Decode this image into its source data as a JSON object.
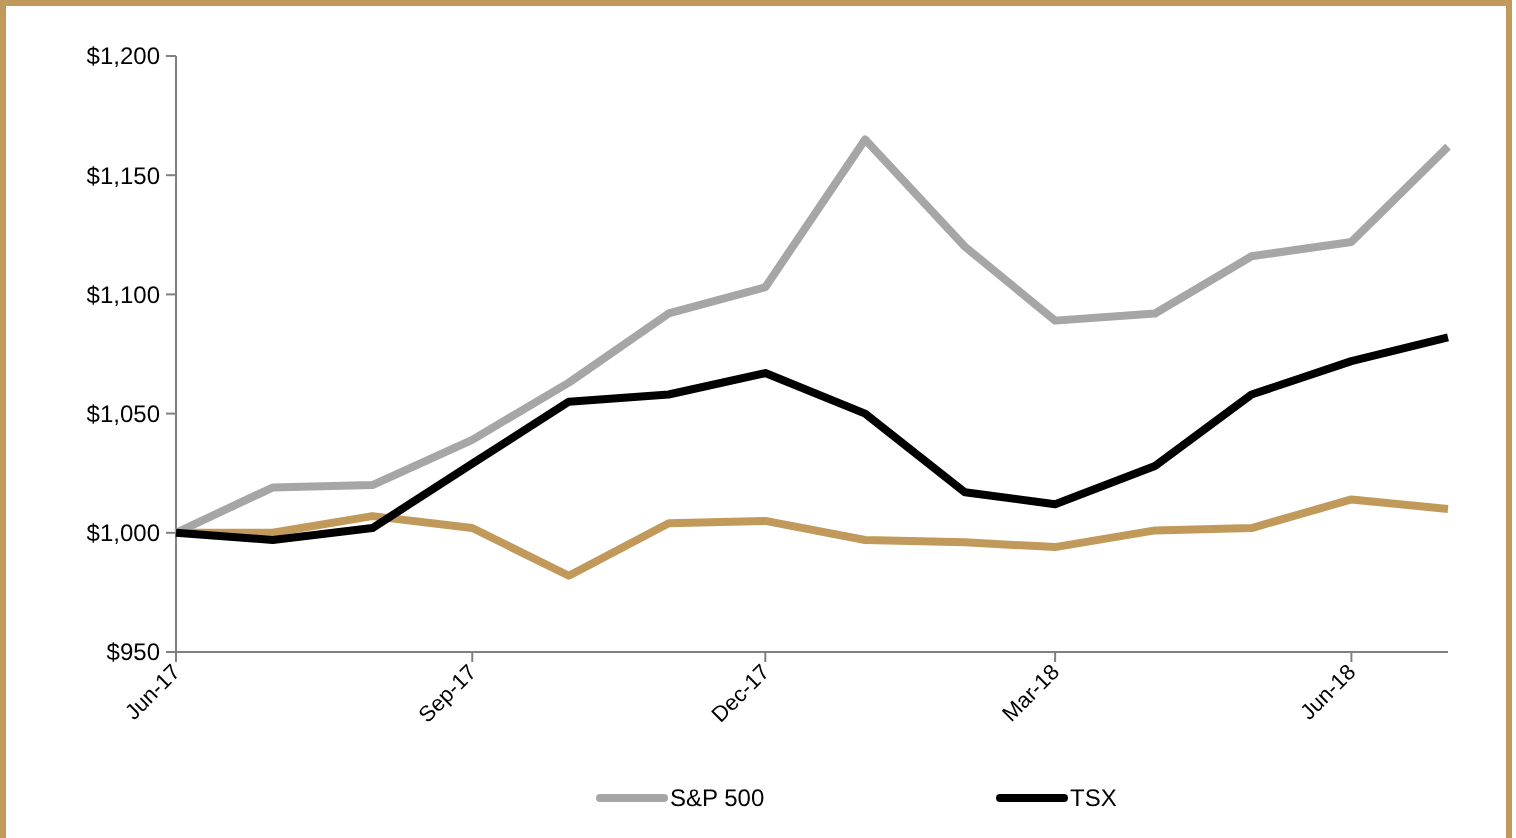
{
  "chart_data": {
    "type": "line",
    "x": [
      "2017-06",
      "2017-07",
      "2017-08",
      "2017-09",
      "2017-10",
      "2017-11",
      "2017-12",
      "2018-01",
      "2018-02",
      "2018-03",
      "2018-04",
      "2018-05",
      "2018-06",
      "2018-07"
    ],
    "series": [
      {
        "color": "#c19a5b",
        "values": [
          1000,
          1000,
          1007,
          1002,
          982,
          1004,
          1005,
          997,
          996,
          994,
          1001,
          1002,
          1014,
          1010
        ]
      },
      {
        "name": "S&P 500",
        "color": "#a6a6a6",
        "values": [
          1000,
          1019,
          1020,
          1039,
          1063,
          1092,
          1103,
          1165,
          1120,
          1089,
          1092,
          1116,
          1122,
          1162
        ]
      },
      {
        "name": "TSX",
        "color": "#000000",
        "values": [
          1000,
          997,
          1002,
          1029,
          1055,
          1058,
          1067,
          1050,
          1017,
          1012,
          1028,
          1058,
          1072,
          1082
        ]
      }
    ],
    "xlim": [
      "2017-06",
      "2018-07"
    ],
    "xticks": [
      {
        "value": "2017-06",
        "label": "Jun-17"
      },
      {
        "value": "2017-09",
        "label": "Sep-17"
      },
      {
        "value": "2017-12",
        "label": "Dec-17"
      },
      {
        "value": "2018-03",
        "label": "Mar-18"
      },
      {
        "value": "2018-06",
        "label": "Jun-18"
      }
    ],
    "ylim": [
      950,
      1200
    ],
    "yticks": [
      {
        "value": 950,
        "label": "$950"
      },
      {
        "value": 1000,
        "label": "$1,000"
      },
      {
        "value": 1050,
        "label": "$1,050"
      },
      {
        "value": 1100,
        "label": "$1,100"
      },
      {
        "value": 1150,
        "label": "$1,150"
      },
      {
        "value": 1200,
        "label": "$1,200"
      }
    ],
    "grid": false,
    "legend": "bottom",
    "marker": "none",
    "line_style": "solid"
  }
}
